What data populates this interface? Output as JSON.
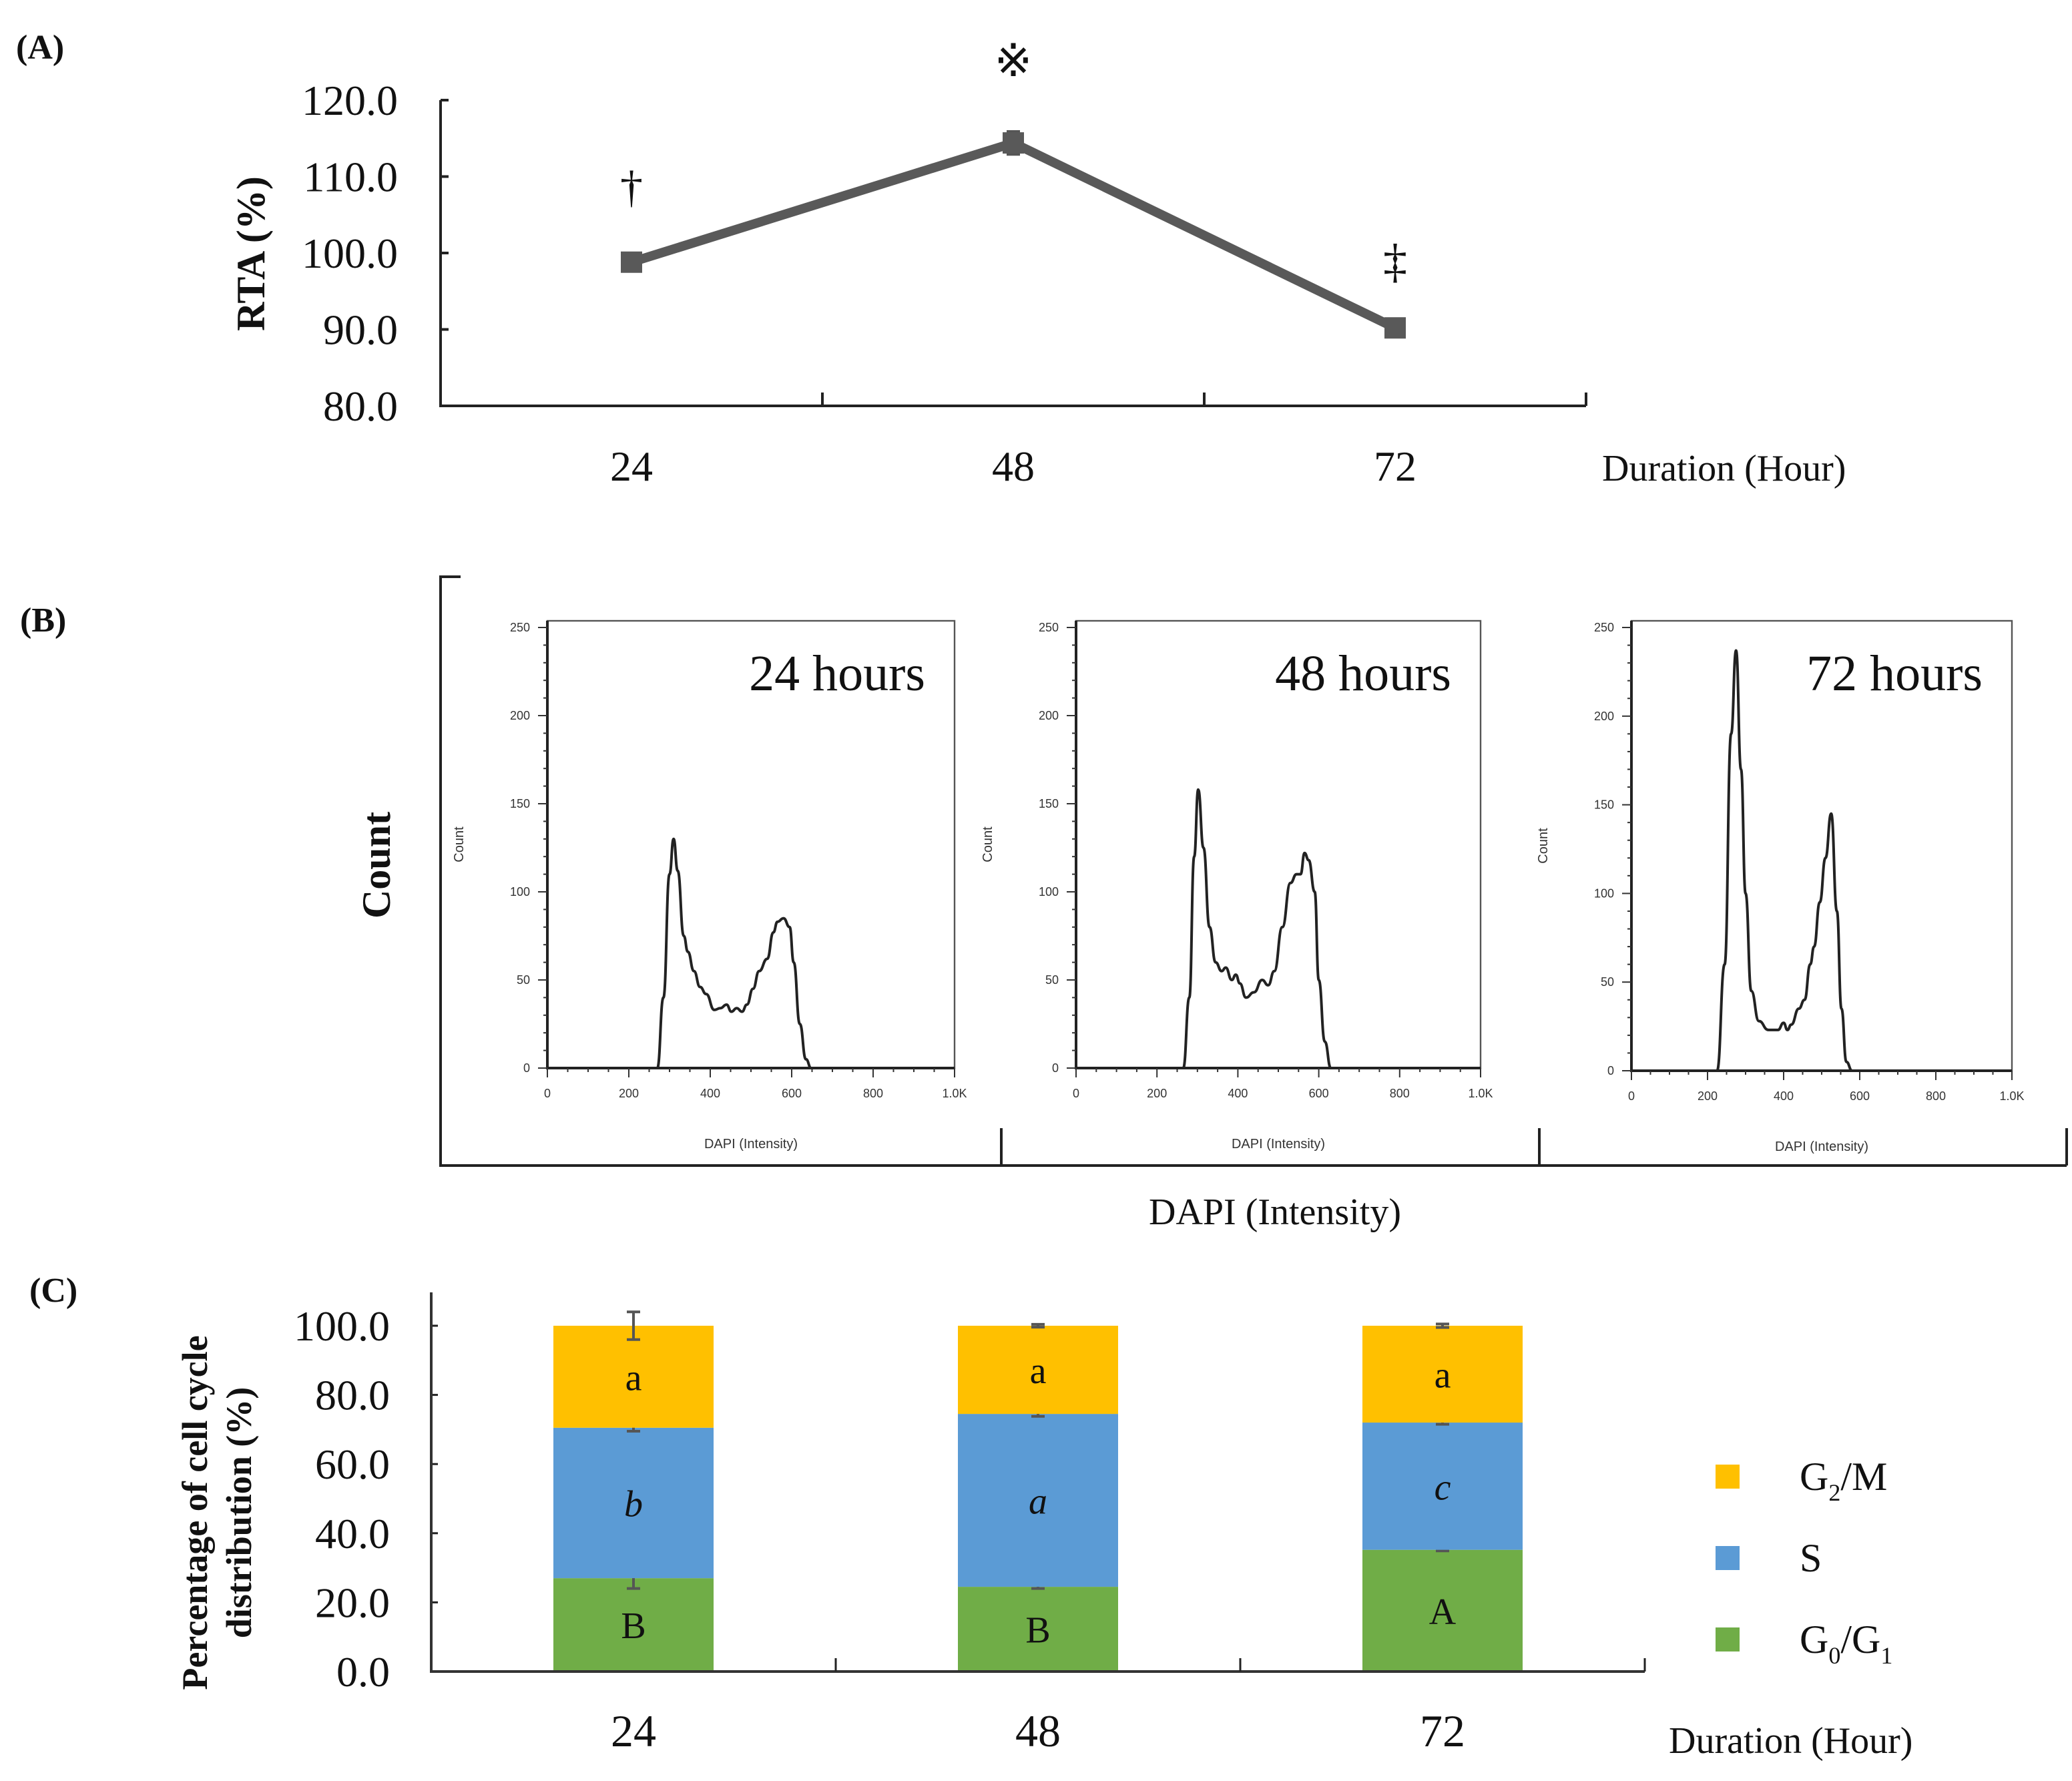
{
  "chart_data": [
    {
      "panel": "(A)",
      "type": "line",
      "ylabel": "RTA (%)",
      "xlabel": "Duration (Hour)",
      "categories": [
        "24",
        "48",
        "72"
      ],
      "ylim": [
        80,
        120
      ],
      "yticks": [
        "80.0",
        "90.0",
        "100.0",
        "110.0",
        "120.0"
      ],
      "values": [
        98.8,
        114.4,
        90.2
      ],
      "errors": [
        0.6,
        1.5,
        0.5
      ],
      "annotations": [
        "†",
        "※",
        "‡"
      ],
      "color": "#595959"
    },
    {
      "panel": "(B)",
      "type": "line",
      "ylabel": "Count",
      "xlabel": "DAPI (Intensity)",
      "subplots": [
        {
          "title": "24 hours",
          "ylabel": "Count",
          "xlabel": "DAPI (Intensity)",
          "xticks": [
            "0",
            "200",
            "400",
            "600",
            "800",
            "1.0K"
          ],
          "yticks": [
            "0",
            "50",
            "100",
            "150",
            "200",
            "250"
          ],
          "xlim": [
            0,
            1000
          ],
          "ylim": [
            0,
            250
          ],
          "x": [
            250,
            270,
            285,
            300,
            310,
            320,
            335,
            345,
            360,
            375,
            390,
            410,
            425,
            440,
            452,
            465,
            478,
            490,
            505,
            520,
            540,
            555,
            565,
            580,
            595,
            605,
            620,
            635,
            648,
            660,
            700
          ],
          "y": [
            0,
            0,
            40,
            110,
            130,
            112,
            75,
            66,
            55,
            46,
            42,
            33,
            34,
            36,
            32,
            34,
            32,
            36,
            45,
            55,
            62,
            77,
            83,
            85,
            80,
            60,
            25,
            5,
            0,
            0,
            0
          ]
        },
        {
          "title": "48 hours",
          "ylabel": "Count",
          "xlabel": "DAPI (Intensity)",
          "xticks": [
            "0",
            "200",
            "400",
            "600",
            "800",
            "1.0K"
          ],
          "yticks": [
            "0",
            "50",
            "100",
            "150",
            "200",
            "250"
          ],
          "xlim": [
            0,
            1000
          ],
          "ylim": [
            0,
            250
          ],
          "x": [
            240,
            265,
            280,
            292,
            302,
            315,
            330,
            345,
            360,
            370,
            385,
            395,
            405,
            420,
            440,
            460,
            475,
            490,
            510,
            530,
            545,
            555,
            565,
            575,
            590,
            600,
            615,
            630,
            650
          ],
          "y": [
            0,
            0,
            40,
            120,
            158,
            125,
            80,
            60,
            55,
            57,
            50,
            53,
            48,
            40,
            43,
            50,
            47,
            55,
            80,
            105,
            110,
            110,
            122,
            118,
            100,
            50,
            15,
            0,
            0
          ]
        },
        {
          "title": "72 hours",
          "ylabel": "Count",
          "xlabel": "DAPI (Intensity)",
          "xticks": [
            "0",
            "200",
            "400",
            "600",
            "800",
            "1.0K"
          ],
          "yticks": [
            "0",
            "50",
            "100",
            "150",
            "200",
            "250"
          ],
          "xlim": [
            0,
            1000
          ],
          "ylim": [
            0,
            250
          ],
          "x": [
            200,
            225,
            245,
            262,
            275,
            288,
            300,
            315,
            335,
            360,
            385,
            400,
            410,
            420,
            440,
            455,
            470,
            480,
            495,
            510,
            525,
            540,
            552,
            565,
            580,
            620
          ],
          "y": [
            0,
            0,
            60,
            190,
            237,
            170,
            100,
            45,
            28,
            23,
            23,
            27,
            23,
            26,
            35,
            40,
            60,
            70,
            95,
            120,
            145,
            90,
            35,
            5,
            0,
            0
          ]
        }
      ]
    },
    {
      "panel": "(C)",
      "type": "bar",
      "stacked": true,
      "ylabel_lines": [
        "Percentage of cell cycle",
        "distribution (%)"
      ],
      "xlabel": "Duration (Hour)",
      "categories": [
        "24",
        "48",
        "72"
      ],
      "ylim": [
        0,
        100
      ],
      "yticks": [
        "0.0",
        "20.0",
        "40.0",
        "60.0",
        "80.0",
        "100.0"
      ],
      "legend_position": "right",
      "series": [
        {
          "name": "G0/G1",
          "label_main": "G",
          "label_sub1": "0",
          "label_mid": "/G",
          "label_sub2": "1",
          "color": "#70AD47",
          "values": [
            27.0,
            24.5,
            35.2
          ],
          "errors": [
            3.0,
            0.5,
            0.3
          ],
          "letters": [
            "B",
            "B",
            "A"
          ],
          "italic": false
        },
        {
          "name": "S",
          "label_main": "S",
          "color": "#5B9BD5",
          "values": [
            43.5,
            50.0,
            36.8
          ],
          "errors": [
            1.0,
            0.7,
            0.5
          ],
          "letters": [
            "b",
            "a",
            "c"
          ],
          "italic": true
        },
        {
          "name": "G2/M",
          "label_main": "G",
          "label_sub1": "2",
          "label_mid": "/M",
          "color": "#FFC000",
          "values": [
            29.5,
            25.5,
            28.0
          ],
          "errors": [
            4.0,
            0.4,
            0.5
          ],
          "letters": [
            "a",
            "a",
            "a"
          ],
          "italic": false
        }
      ]
    }
  ]
}
